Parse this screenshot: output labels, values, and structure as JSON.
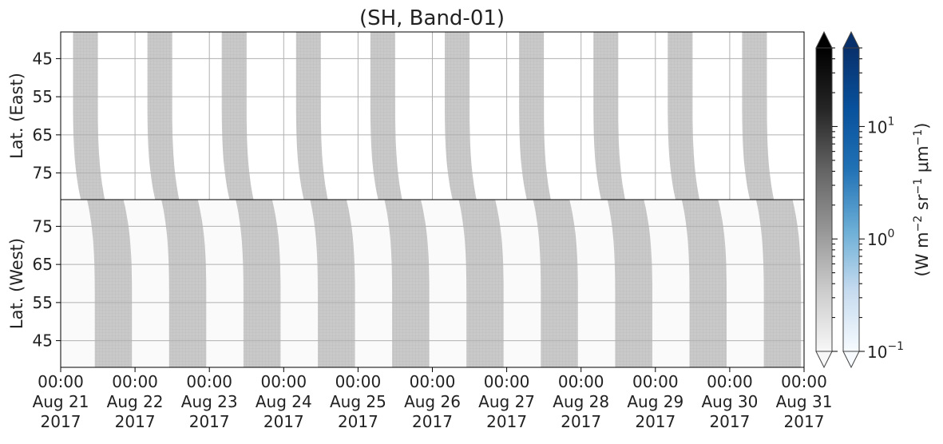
{
  "chart_data": {
    "type": "heatmap",
    "title": "(SH, Band-01)",
    "panels": [
      {
        "id": "east",
        "ylabel": "Lat. (East)",
        "yticks": [
          45,
          55,
          65,
          75
        ],
        "ylim": [
          38,
          82
        ],
        "y_direction": "increasing-down"
      },
      {
        "id": "west",
        "ylabel": "Lat. (West)",
        "yticks": [
          75,
          65,
          55,
          45
        ],
        "ylim": [
          82,
          38
        ],
        "y_direction": "increasing-up"
      }
    ],
    "xticks": [
      {
        "time": "00:00",
        "date": "Aug 21",
        "year": "2017"
      },
      {
        "time": "00:00",
        "date": "Aug 22",
        "year": "2017"
      },
      {
        "time": "00:00",
        "date": "Aug 23",
        "year": "2017"
      },
      {
        "time": "00:00",
        "date": "Aug 24",
        "year": "2017"
      },
      {
        "time": "00:00",
        "date": "Aug 25",
        "year": "2017"
      },
      {
        "time": "00:00",
        "date": "Aug 26",
        "year": "2017"
      },
      {
        "time": "00:00",
        "date": "Aug 27",
        "year": "2017"
      },
      {
        "time": "00:00",
        "date": "Aug 28",
        "year": "2017"
      },
      {
        "time": "00:00",
        "date": "Aug 29",
        "year": "2017"
      },
      {
        "time": "00:00",
        "date": "Aug 30",
        "year": "2017"
      },
      {
        "time": "00:00",
        "date": "Aug 31",
        "year": "2017"
      }
    ],
    "xlim": [
      "2017-08-21 00:00",
      "2017-08-31 00:00"
    ],
    "grid": true,
    "bands_east": {
      "start_dates": [
        "2017-08-21 04:00",
        "2017-08-22 04:00",
        "2017-08-23 04:00",
        "2017-08-24 04:00",
        "2017-08-25 04:00",
        "2017-08-26 04:00",
        "2017-08-27 04:00",
        "2017-08-28 04:00",
        "2017-08-29 04:00",
        "2017-08-30 04:00"
      ],
      "top_width_hours": 8,
      "shift_hours_at_82": 2.5
    },
    "bands_west": {
      "start_dates": [
        "2017-08-21 11:00",
        "2017-08-22 11:00",
        "2017-08-23 11:00",
        "2017-08-24 11:00",
        "2017-08-25 11:00",
        "2017-08-26 11:00",
        "2017-08-27 11:00",
        "2017-08-28 11:00",
        "2017-08-29 11:00",
        "2017-08-30 11:00"
      ],
      "bottom_width_hours": 12,
      "shift_hours_at_82": 2.5
    },
    "colorbars": [
      {
        "name": "gray",
        "colors": [
          "#f7f7f7",
          "#cccccc",
          "#969696",
          "#636363",
          "#252525",
          "#000000"
        ],
        "extend": "both"
      },
      {
        "name": "blue",
        "colors": [
          "#f7fbff",
          "#c6dbef",
          "#6baed6",
          "#2171b5",
          "#08519c",
          "#08306b"
        ],
        "extend": "both"
      }
    ],
    "colorbar_scale": "log",
    "colorbar_ticks": [
      {
        "base": "10",
        "exp": "1",
        "value": 10
      },
      {
        "base": "10",
        "exp": "0",
        "value": 1
      },
      {
        "base": "10",
        "exp": "−1",
        "value": 0.1
      }
    ],
    "colorbar_range": [
      0.1,
      50
    ],
    "colorbar_label": {
      "pre": "(W m",
      "sup1": "−2",
      "mid1": " sr",
      "sup2": "−1",
      "mid2": " μm",
      "sup3": "−1",
      "post": ")"
    },
    "band_color": "#c8c8c8",
    "background_color": "#fafafa"
  }
}
